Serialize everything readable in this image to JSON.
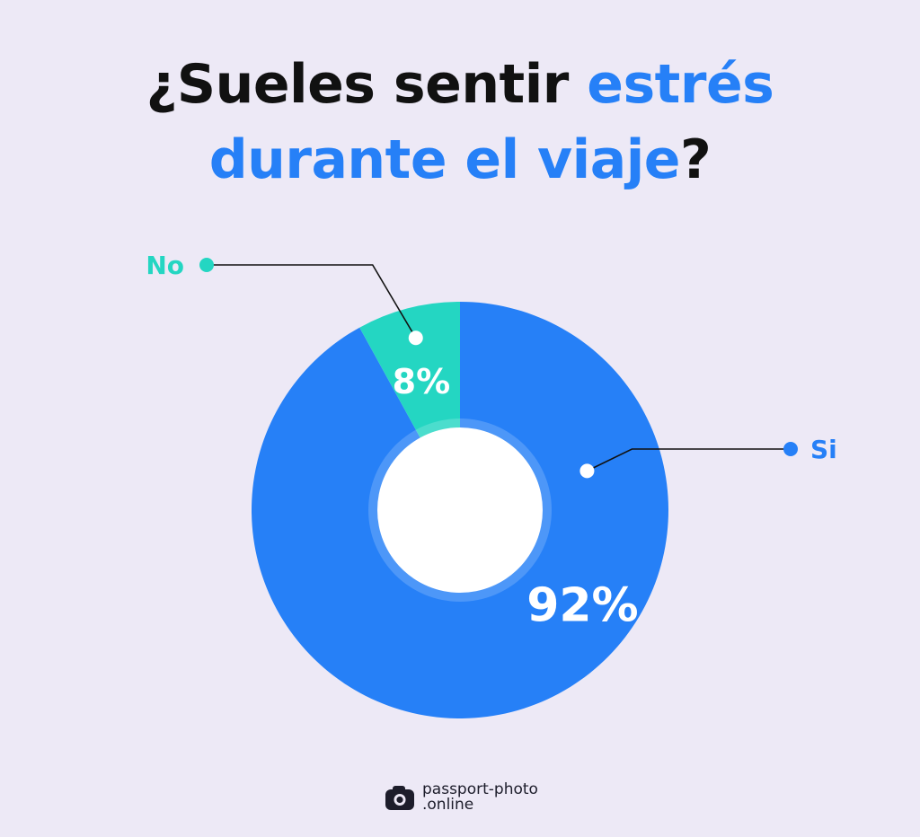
{
  "title": {
    "part1": "¿Sueles sentir ",
    "part2": "estrés",
    "part3": "durante el viaje",
    "part4": "?"
  },
  "colors": {
    "background": "#ede9f6",
    "primary": "#2680f7",
    "secondary": "#24d6c2",
    "title_text": "#111111"
  },
  "chart_data": {
    "type": "pie",
    "variant": "donut",
    "categories": [
      "Si",
      "No"
    ],
    "values": [
      92,
      8
    ],
    "value_labels": [
      "92%",
      "8%"
    ],
    "colors": [
      "#2680f7",
      "#24d6c2"
    ]
  },
  "brand": {
    "icon": "camera-icon",
    "line1": "passport-photo",
    "line2": ".online"
  }
}
